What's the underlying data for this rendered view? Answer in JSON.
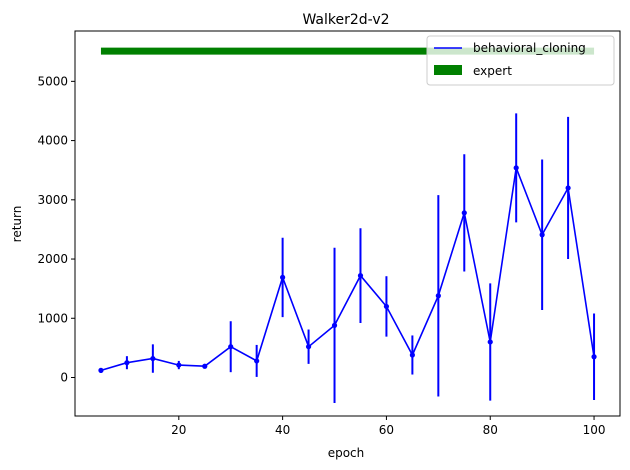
{
  "chart_data": {
    "type": "line",
    "title": "Walker2d-v2",
    "xlabel": "epoch",
    "ylabel": "return",
    "xlim": [
      0,
      105
    ],
    "ylim": [
      -650,
      5850
    ],
    "xticks": [
      20,
      40,
      60,
      80,
      100
    ],
    "yticks": [
      0,
      1000,
      2000,
      3000,
      4000,
      5000
    ],
    "grid": false,
    "legend_position": "top-right",
    "series": [
      {
        "name": "behavioral_cloning",
        "kind": "line-errorbar",
        "color": "#0000ff",
        "x": [
          5,
          10,
          15,
          20,
          25,
          30,
          35,
          40,
          45,
          50,
          55,
          60,
          65,
          70,
          75,
          80,
          85,
          90,
          95,
          100
        ],
        "y": [
          120,
          250,
          320,
          210,
          190,
          520,
          280,
          1690,
          520,
          880,
          1720,
          1200,
          380,
          1380,
          2780,
          600,
          3540,
          2410,
          3200,
          350
        ],
        "err": [
          40,
          110,
          240,
          70,
          30,
          430,
          270,
          670,
          290,
          1310,
          800,
          510,
          330,
          1700,
          990,
          990,
          920,
          1270,
          1200,
          730
        ]
      },
      {
        "name": "expert",
        "kind": "hline",
        "color": "#008000",
        "x": [
          5,
          100
        ],
        "y": 5510
      }
    ]
  }
}
